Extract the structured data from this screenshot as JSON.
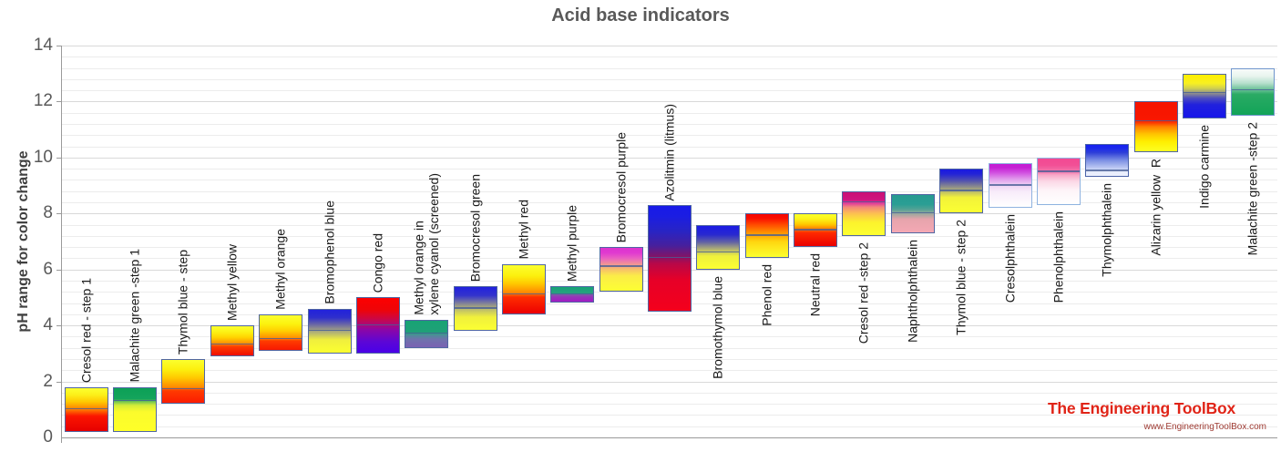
{
  "title": "Acid base indicators",
  "y_axis": {
    "label": "pH range for color change",
    "min": 0,
    "max": 14,
    "tick_step": 2,
    "minor_gridline_step": 0.4,
    "ticks": [
      "0",
      "2",
      "4",
      "6",
      "8",
      "10",
      "12",
      "14"
    ]
  },
  "branding": {
    "name": "The Engineering ToolBox",
    "url": "www.EngineeringToolBox.com",
    "logo_color": "#e02417",
    "url_color": "#9e3a32"
  },
  "theme": {
    "grid_minor": "#ececec",
    "grid_major": "#d9d9d9",
    "axis": "#9a9a9a",
    "tick_text": "#595959",
    "title_text": "#595959",
    "label_text": "#1a1a1a"
  },
  "chart_data": {
    "type": "bar",
    "subtype": "floating-range-bars",
    "title": "Acid base indicators",
    "xlabel": "",
    "ylabel": "pH range for color change",
    "ylim": [
      0,
      14
    ],
    "grid": true,
    "legend": false,
    "indicators": [
      {
        "label": "Cresol red - step 1",
        "ph_low": 0.2,
        "ph_high": 1.8,
        "ph_divider": 1.0,
        "label_position": "above",
        "border": "#5066a2",
        "stops": [
          [
            0,
            "#e60000"
          ],
          [
            0.35,
            "#fb1500"
          ],
          [
            0.5,
            "#ff7a00"
          ],
          [
            0.68,
            "#ffc800"
          ],
          [
            0.85,
            "#fcf01a"
          ],
          [
            1,
            "#fbff2e"
          ]
        ]
      },
      {
        "label": "Malachite green -step 1",
        "ph_low": 0.2,
        "ph_high": 1.8,
        "ph_divider": 1.3,
        "label_position": "above",
        "border": "#5066a2",
        "stops": [
          [
            0,
            "#feff28"
          ],
          [
            0.45,
            "#fbfb2c"
          ],
          [
            0.6,
            "#d2ec38"
          ],
          [
            0.68,
            "#7cc84e"
          ],
          [
            0.75,
            "#14a45c"
          ],
          [
            1,
            "#0ca056"
          ]
        ]
      },
      {
        "label": "Thymol blue - step",
        "ph_low": 1.2,
        "ph_high": 2.8,
        "ph_divider": 1.7,
        "label_position": "above",
        "border": "#5066a2",
        "stops": [
          [
            0,
            "#fb1c00"
          ],
          [
            0.28,
            "#ff3a00"
          ],
          [
            0.36,
            "#ff8800"
          ],
          [
            0.58,
            "#ffc800"
          ],
          [
            0.78,
            "#fcf00e"
          ],
          [
            1,
            "#fbff2e"
          ]
        ]
      },
      {
        "label": "Methyl yellow",
        "ph_low": 2.9,
        "ph_high": 4.0,
        "ph_divider": 3.3,
        "label_position": "above",
        "border": "#5066a2",
        "stops": [
          [
            0,
            "#ee0e00"
          ],
          [
            0.3,
            "#ff3c00"
          ],
          [
            0.42,
            "#ff9400"
          ],
          [
            0.62,
            "#ffd400"
          ],
          [
            0.8,
            "#fcf114"
          ],
          [
            1,
            "#fbff2e"
          ]
        ]
      },
      {
        "label": "Methyl orange",
        "ph_low": 3.1,
        "ph_high": 4.4,
        "ph_divider": 3.5,
        "label_position": "above",
        "border": "#5066a2",
        "stops": [
          [
            0,
            "#f81800"
          ],
          [
            0.26,
            "#ff3c00"
          ],
          [
            0.34,
            "#ff8c00"
          ],
          [
            0.55,
            "#ffcf00"
          ],
          [
            0.75,
            "#fcf20e"
          ],
          [
            1,
            "#fbff2e"
          ]
        ]
      },
      {
        "label": "Bromophenol blue",
        "ph_low": 3.0,
        "ph_high": 4.6,
        "ph_divider": 3.8,
        "label_position": "above",
        "border": "#5066a2",
        "stops": [
          [
            0,
            "#fbff30"
          ],
          [
            0.3,
            "#f0ef3e"
          ],
          [
            0.5,
            "#a8a87c"
          ],
          [
            0.66,
            "#6a66a6"
          ],
          [
            0.82,
            "#2e2ecc"
          ],
          [
            1,
            "#2222dc"
          ]
        ]
      },
      {
        "label": "Congo red",
        "ph_low": 3.0,
        "ph_high": 5.0,
        "ph_divider": 4.0,
        "label_position": "above",
        "border": "#5066a2",
        "stops": [
          [
            0,
            "#4a00e8"
          ],
          [
            0.2,
            "#5c06d6"
          ],
          [
            0.42,
            "#8c06a6"
          ],
          [
            0.5,
            "#a8087e"
          ],
          [
            0.62,
            "#cc0744"
          ],
          [
            0.78,
            "#ee0408"
          ],
          [
            1,
            "#fd0000"
          ]
        ]
      },
      {
        "label": "Methyl orange in\nxylene cyanol (screened)",
        "ph_low": 3.2,
        "ph_high": 4.2,
        "ph_divider": 3.7,
        "label_position": "above",
        "border": "#5066a2",
        "stops": [
          [
            0,
            "#7a62b2"
          ],
          [
            0.3,
            "#6f72ac"
          ],
          [
            0.47,
            "#4b8f96"
          ],
          [
            0.54,
            "#20a078"
          ],
          [
            1,
            "#18a374"
          ]
        ]
      },
      {
        "label": "Bromocresol green",
        "ph_low": 3.8,
        "ph_high": 5.4,
        "ph_divider": 4.6,
        "label_position": "above",
        "border": "#5066a2",
        "stops": [
          [
            0,
            "#fbff33"
          ],
          [
            0.3,
            "#f0f03c"
          ],
          [
            0.48,
            "#bcbc6c"
          ],
          [
            0.64,
            "#7878a0"
          ],
          [
            0.8,
            "#3434cc"
          ],
          [
            1,
            "#2020dd"
          ]
        ]
      },
      {
        "label": "Methyl red",
        "ph_low": 4.4,
        "ph_high": 6.2,
        "ph_divider": 5.1,
        "label_position": "above",
        "border": "#5066a2",
        "stops": [
          [
            0,
            "#ec0000"
          ],
          [
            0.34,
            "#ff2d00"
          ],
          [
            0.42,
            "#ff8400"
          ],
          [
            0.62,
            "#ffc900"
          ],
          [
            0.78,
            "#fcf00e"
          ],
          [
            1,
            "#fbff2e"
          ]
        ]
      },
      {
        "label": "Methyl purple",
        "ph_low": 4.8,
        "ph_high": 5.4,
        "ph_divider": 5.1,
        "label_position": "above",
        "border": "#5066a2",
        "stops": [
          [
            0,
            "#a21cc4"
          ],
          [
            0.35,
            "#9638b8"
          ],
          [
            0.48,
            "#7e58a8"
          ],
          [
            0.54,
            "#2aa080"
          ],
          [
            1,
            "#16a476"
          ]
        ]
      },
      {
        "label": "Bromocresol purple",
        "ph_low": 5.2,
        "ph_high": 6.8,
        "ph_divider": 6.1,
        "label_position": "above",
        "border": "#5066a2",
        "stops": [
          [
            0,
            "#fcff33"
          ],
          [
            0.35,
            "#fbec48"
          ],
          [
            0.5,
            "#f7c06a"
          ],
          [
            0.63,
            "#f09098"
          ],
          [
            0.76,
            "#e95fc2"
          ],
          [
            0.88,
            "#e03ad0"
          ],
          [
            1,
            "#dd32cf"
          ]
        ]
      },
      {
        "label": "Azolitmin (litmus)",
        "ph_low": 4.5,
        "ph_high": 8.3,
        "ph_divider": 6.4,
        "label_position": "above",
        "border": "#5066a2",
        "stops": [
          [
            0,
            "#f4001c"
          ],
          [
            0.3,
            "#e60028"
          ],
          [
            0.45,
            "#b80848"
          ],
          [
            0.52,
            "#801468"
          ],
          [
            0.62,
            "#47209c"
          ],
          [
            0.76,
            "#2824c4"
          ],
          [
            0.9,
            "#1b1de2"
          ],
          [
            1,
            "#181ae8"
          ]
        ]
      },
      {
        "label": "Bromothymol blue",
        "ph_low": 6.0,
        "ph_high": 7.6,
        "ph_divider": 6.6,
        "label_position": "below",
        "border": "#5066a2",
        "stops": [
          [
            0,
            "#fbff33"
          ],
          [
            0.3,
            "#eef03c"
          ],
          [
            0.46,
            "#b0b074"
          ],
          [
            0.62,
            "#6464a4"
          ],
          [
            0.8,
            "#2828d0"
          ],
          [
            1,
            "#1b1be4"
          ]
        ]
      },
      {
        "label": "Phenol red",
        "ph_low": 6.4,
        "ph_high": 8.0,
        "ph_divider": 7.2,
        "label_position": "below",
        "border": "#5066a2",
        "stops": [
          [
            0,
            "#fbff30"
          ],
          [
            0.35,
            "#ffd810"
          ],
          [
            0.55,
            "#ff9900"
          ],
          [
            0.75,
            "#ff4c00"
          ],
          [
            0.9,
            "#f90f00"
          ],
          [
            1,
            "#f60500"
          ]
        ]
      },
      {
        "label": "Neutral red",
        "ph_low": 6.8,
        "ph_high": 8.0,
        "ph_divider": 7.4,
        "label_position": "below",
        "border": "#5066a2",
        "stops": [
          [
            0,
            "#ea0000"
          ],
          [
            0.42,
            "#ff2a00"
          ],
          [
            0.52,
            "#ff7700"
          ],
          [
            0.68,
            "#ffc800"
          ],
          [
            0.85,
            "#fcf31a"
          ],
          [
            1,
            "#fbff28"
          ]
        ]
      },
      {
        "label": "Cresol red -step 2",
        "ph_low": 7.2,
        "ph_high": 8.8,
        "ph_divider": 8.4,
        "label_position": "below",
        "border": "#5066a2",
        "stops": [
          [
            0,
            "#fcff30"
          ],
          [
            0.3,
            "#fcf22c"
          ],
          [
            0.5,
            "#fcc150"
          ],
          [
            0.65,
            "#f58a78"
          ],
          [
            0.74,
            "#e0409a"
          ],
          [
            0.82,
            "#cf1580"
          ],
          [
            1,
            "#c91076"
          ]
        ]
      },
      {
        "label": "Naphtholphthalein",
        "ph_low": 7.3,
        "ph_high": 8.7,
        "ph_divider": 8.0,
        "label_position": "below",
        "border": "#5066a2",
        "stops": [
          [
            0,
            "#f4a8b4"
          ],
          [
            0.35,
            "#e6a4ac"
          ],
          [
            0.5,
            "#9aa89e"
          ],
          [
            0.62,
            "#52a295"
          ],
          [
            0.75,
            "#2a9e94"
          ],
          [
            1,
            "#269a90"
          ]
        ]
      },
      {
        "label": "Thymol blue - step 2",
        "ph_low": 8.0,
        "ph_high": 9.6,
        "ph_divider": 8.8,
        "label_position": "below",
        "border": "#5066a2",
        "stops": [
          [
            0,
            "#fbff33"
          ],
          [
            0.35,
            "#f2f23a"
          ],
          [
            0.55,
            "#a0a080"
          ],
          [
            0.74,
            "#5050b0"
          ],
          [
            0.9,
            "#2222d8"
          ],
          [
            1,
            "#1a1ae0"
          ]
        ]
      },
      {
        "label": "Cresolphthalein",
        "ph_low": 8.2,
        "ph_high": 9.8,
        "ph_divider": 9.0,
        "label_position": "below",
        "border": "#8fb3e0",
        "stops": [
          [
            0,
            "#ffffff"
          ],
          [
            0.35,
            "#f8ecfa"
          ],
          [
            0.5,
            "#eed4f4"
          ],
          [
            0.65,
            "#e09aec"
          ],
          [
            0.8,
            "#d14fe0"
          ],
          [
            0.92,
            "#c520d4"
          ],
          [
            1,
            "#c31ed2"
          ]
        ]
      },
      {
        "label": "Phenolphthalein",
        "ph_low": 8.3,
        "ph_high": 10.0,
        "ph_divider": 9.5,
        "label_position": "below",
        "border": "#8fb3e0",
        "stops": [
          [
            0,
            "#ffffff"
          ],
          [
            0.3,
            "#fef4f8"
          ],
          [
            0.5,
            "#fbd8e6"
          ],
          [
            0.64,
            "#f8a8c8"
          ],
          [
            0.71,
            "#f276ac"
          ],
          [
            0.85,
            "#f25096"
          ],
          [
            1,
            "#f34892"
          ]
        ]
      },
      {
        "label": "Thymolphthalein",
        "ph_low": 9.3,
        "ph_high": 10.5,
        "ph_divider": 9.5,
        "label_position": "below",
        "border": "#4a62a8",
        "stops": [
          [
            0,
            "#eef2fe"
          ],
          [
            0.16,
            "#e4eafc"
          ],
          [
            0.2,
            "#ccd6f6"
          ],
          [
            0.5,
            "#7c90e4"
          ],
          [
            0.75,
            "#2e3fd8"
          ],
          [
            0.9,
            "#1a28ec"
          ],
          [
            1,
            "#1520f0"
          ]
        ]
      },
      {
        "label": "Alizarin yellow  R",
        "ph_low": 10.2,
        "ph_high": 12.0,
        "ph_divider": 11.3,
        "label_position": "below",
        "border": "#5066a2",
        "stops": [
          [
            0,
            "#fcff22"
          ],
          [
            0.2,
            "#ffee00"
          ],
          [
            0.35,
            "#ffc400"
          ],
          [
            0.5,
            "#ff8000"
          ],
          [
            0.58,
            "#fb3a00"
          ],
          [
            0.63,
            "#f81800"
          ],
          [
            1,
            "#f61300"
          ]
        ]
      },
      {
        "label": "Indigo carmine",
        "ph_low": 11.4,
        "ph_high": 13.0,
        "ph_divider": 12.3,
        "label_position": "below",
        "border": "#5066a2",
        "stops": [
          [
            0,
            "#1717ea"
          ],
          [
            0.3,
            "#2020dd"
          ],
          [
            0.45,
            "#4c4cc0"
          ],
          [
            0.56,
            "#8a8a90"
          ],
          [
            0.68,
            "#cfcf50"
          ],
          [
            0.8,
            "#f8f022"
          ],
          [
            1,
            "#ffee00"
          ]
        ]
      },
      {
        "label": "Malachite green -step 2",
        "ph_low": 11.5,
        "ph_high": 13.2,
        "ph_divider": 12.4,
        "label_position": "below",
        "border": "#6f95cc",
        "stops": [
          [
            0,
            "#12a458"
          ],
          [
            0.45,
            "#2aaa64"
          ],
          [
            0.53,
            "#5cbc8c"
          ],
          [
            0.7,
            "#b9e0cf"
          ],
          [
            0.85,
            "#e8f4ee"
          ],
          [
            1,
            "#f8fbfa"
          ]
        ]
      }
    ]
  }
}
